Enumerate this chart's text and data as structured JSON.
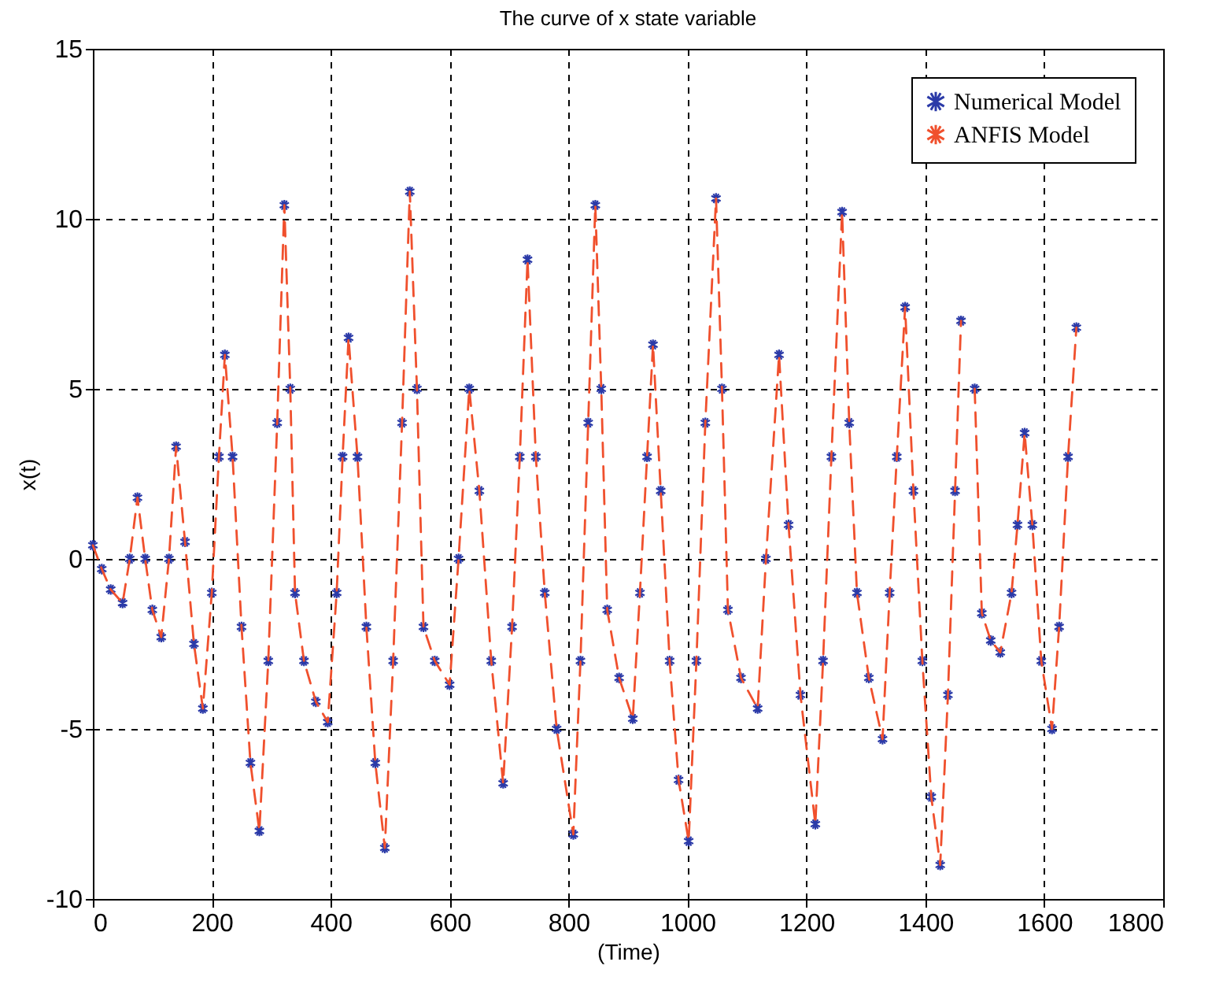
{
  "chart_data": {
    "type": "line",
    "title": "The curve of x state variable",
    "xlabel": "(Time)",
    "ylabel": "x(t)",
    "x": [
      0,
      15,
      30,
      50,
      62,
      75,
      88,
      100,
      115,
      128,
      140,
      155,
      170,
      185,
      200,
      212,
      222,
      235,
      250,
      265,
      280,
      295,
      310,
      322,
      332,
      340,
      355,
      375,
      395,
      410,
      420,
      430,
      445,
      460,
      475,
      491,
      505,
      520,
      533,
      545,
      556,
      575,
      600,
      615,
      633,
      650,
      670,
      690,
      705,
      718,
      731,
      745,
      760,
      780,
      808,
      820,
      833,
      845,
      855,
      865,
      885,
      908,
      920,
      932,
      942,
      955,
      970,
      985,
      1002,
      1015,
      1030,
      1048,
      1058,
      1068,
      1090,
      1118,
      1132,
      1154,
      1170,
      1190,
      1215,
      1228,
      1242,
      1260,
      1272,
      1285,
      1305,
      1328,
      1340,
      1352,
      1366,
      1380,
      1395,
      1410,
      1425,
      1438,
      1450,
      1460,
      1471,
      1483,
      1495,
      1510,
      1526,
      1545,
      1555,
      1567,
      1580,
      1595,
      1613,
      1625,
      1640,
      1654
    ],
    "series": [
      {
        "name": "Numerical Model",
        "type": "scatter",
        "marker": "cross",
        "color": "#2b3aa8",
        "values": [
          0.4,
          -0.3,
          -0.9,
          -1.3,
          0,
          1.8,
          0,
          -1.5,
          -2.3,
          0,
          3.3,
          0.5,
          -2.5,
          -4.4,
          -1,
          3,
          6.0,
          3,
          -2,
          -6,
          -8.0,
          -3,
          4,
          10.4,
          5,
          -1,
          -3,
          -4.2,
          -4.8,
          -1,
          3,
          6.5,
          3,
          -2,
          -6,
          -8.5,
          -3,
          4,
          10.8,
          5,
          -2,
          -3,
          -3.7,
          0,
          5.0,
          2,
          -3,
          -6.6,
          -2,
          3,
          8.8,
          3,
          -1,
          -5,
          -8.1,
          -3,
          4,
          10.4,
          5,
          -1.5,
          -3.5,
          -4.7,
          -1,
          3,
          6.3,
          2,
          -3,
          -6.5,
          -8.3,
          -3,
          4,
          10.6,
          5,
          -1.5,
          -3.5,
          -4.4,
          0,
          6.0,
          1,
          -4,
          -7.8,
          -3,
          3,
          10.2,
          4,
          -1,
          -3.5,
          -5.3,
          -1,
          3,
          7.4,
          2,
          -3,
          -7,
          -9.0,
          -4,
          2,
          7,
          null,
          5,
          -1.6,
          -2.4,
          -2.75,
          -1,
          1,
          3.7,
          1,
          -3,
          -5.0,
          -2,
          3,
          6.8
        ]
      },
      {
        "name": "ANFIS Model",
        "type": "line",
        "line_style": "dashed",
        "color": "#f0502d",
        "values": [
          0.4,
          -0.3,
          -0.9,
          -1.3,
          0,
          1.8,
          0,
          -1.5,
          -2.3,
          0,
          3.3,
          0.5,
          -2.5,
          -4.4,
          -1,
          3,
          6.0,
          3,
          -2,
          -6,
          -8.0,
          -3,
          4,
          10.4,
          5,
          -1,
          -3,
          -4.2,
          -4.8,
          -1,
          3,
          6.5,
          3,
          -2,
          -6,
          -8.5,
          -3,
          4,
          10.8,
          5,
          -2,
          -3,
          -3.7,
          0,
          5.0,
          2,
          -3,
          -6.6,
          -2,
          3,
          8.8,
          3,
          -1,
          -5,
          -8.1,
          -3,
          4,
          10.4,
          5,
          -1.5,
          -3.5,
          -4.7,
          -1,
          3,
          6.3,
          2,
          -3,
          -6.5,
          -8.3,
          -3,
          4,
          10.6,
          5,
          -1.5,
          -3.5,
          -4.4,
          0,
          6.0,
          1,
          -4,
          -7.8,
          -3,
          3,
          10.2,
          4,
          -1,
          -3.5,
          -5.3,
          -1,
          3,
          7.4,
          2,
          -3,
          -7,
          -9.0,
          -4,
          2,
          7,
          null,
          5,
          -1.6,
          -2.4,
          -2.75,
          -1,
          1,
          3.7,
          1,
          -3,
          -5.0,
          -2,
          3,
          6.8
        ]
      }
    ],
    "xlim": [
      0,
      1800
    ],
    "xticks": [
      0,
      200,
      400,
      600,
      800,
      1000,
      1200,
      1400,
      1600,
      1800
    ],
    "ylim": [
      -10,
      15
    ],
    "yticks": [
      -10,
      -5,
      0,
      5,
      10,
      15
    ],
    "grid": true,
    "legend": "top right"
  }
}
